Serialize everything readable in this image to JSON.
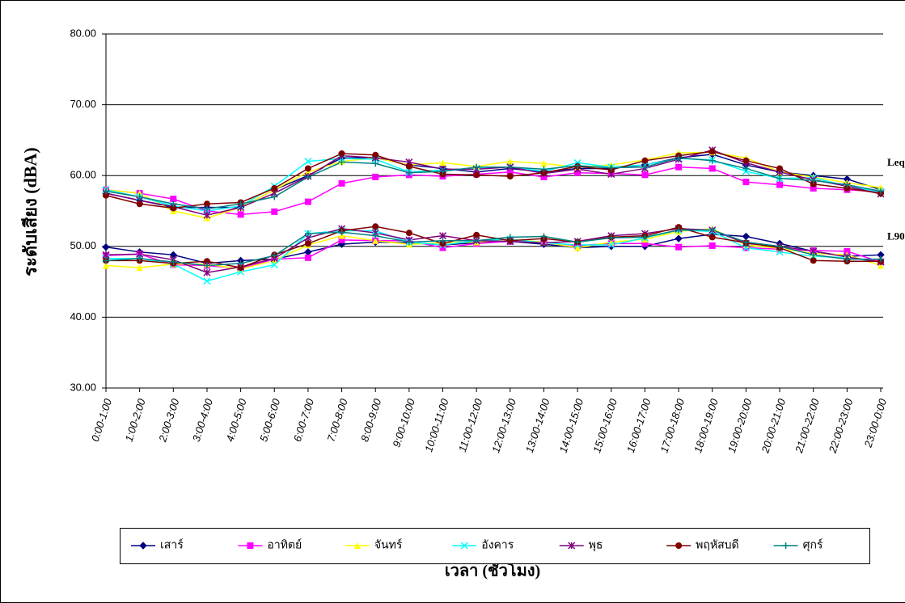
{
  "chart_data": {
    "type": "line",
    "ylabel": "ระดับเสียง (dBA)",
    "xlabel": "เวลา (ชั่วโมง)",
    "annotations": [
      "Leq",
      "L90"
    ],
    "ylim": [
      30,
      80
    ],
    "yticks": [
      {
        "value": 30,
        "label": "30.00"
      },
      {
        "value": 40,
        "label": "40.00"
      },
      {
        "value": 50,
        "label": "50.00"
      },
      {
        "value": 60,
        "label": "60.00"
      },
      {
        "value": 70,
        "label": "70.00"
      },
      {
        "value": 80,
        "label": "80.00"
      }
    ],
    "grid": true,
    "legend": "bottom",
    "categories": [
      "0:00-1:00",
      "1:00-2:00",
      "2:00-3:00",
      "3:00-4:00",
      "4:00-5:00",
      "5:00-6:00",
      "6:00-7:00",
      "7:00-8:00",
      "8:00-9:00",
      "9:00-10:00",
      "10:00-11:00",
      "11:00-12:00",
      "12:00-13:00",
      "13:00-14:00",
      "14:00-15:00",
      "15:00-16:00",
      "16:00-17:00",
      "17:00-18:00",
      "18:00-19:00",
      "19:00-20:00",
      "20:00-21:00",
      "21:00-22:00",
      "22:00-23:00",
      "23:00-0:00"
    ],
    "series": [
      {
        "name": "เสาร์",
        "color": "#000080",
        "marker": "diamond",
        "values": [
          57.5,
          56.5,
          55.5,
          55.5,
          55.5,
          58,
          60,
          62.5,
          62.5,
          61.5,
          61,
          60.5,
          61,
          60.5,
          61,
          61,
          61.5,
          62.5,
          63,
          61.5,
          60.5,
          60,
          59.5,
          58
        ],
        "values_l90": [
          49.9,
          49.2,
          48.8,
          47.6,
          48,
          48.2,
          49.2,
          50.3,
          50.6,
          50.5,
          50.2,
          50.5,
          50.7,
          50.3,
          49.8,
          50,
          50,
          51.1,
          51.7,
          51.4,
          50.4,
          49.3,
          48.6,
          48.8
        ]
      },
      {
        "name": "อาทิตย์",
        "color": "#ff00ff",
        "marker": "square",
        "values": [
          58,
          57.5,
          56.7,
          55,
          54.5,
          54.9,
          56.3,
          58.9,
          59.8,
          60.1,
          59.9,
          60.2,
          60.5,
          59.8,
          60.4,
          60.3,
          60.1,
          61.2,
          61,
          59.1,
          58.7,
          58.2,
          58,
          57.7
        ],
        "values_l90": [
          48.7,
          48.9,
          47.4,
          47.3,
          46.9,
          48.2,
          48.4,
          50.9,
          50.8,
          50.8,
          49.8,
          50.4,
          50.7,
          50.6,
          50.1,
          50.4,
          50.4,
          49.9,
          50.1,
          49.8,
          49.6,
          49.4,
          49.3,
          47.8
        ]
      },
      {
        "name": "จันทร์",
        "color": "#ffff00",
        "marker": "triangle",
        "values": [
          58,
          57.5,
          55,
          54,
          55.5,
          58,
          60.5,
          62,
          62.5,
          61.5,
          61.8,
          61.3,
          62,
          61.7,
          61.2,
          61.5,
          62.2,
          63.2,
          63.3,
          62.5,
          60.5,
          59.8,
          59,
          58.3
        ],
        "values_l90": [
          47.3,
          47,
          47.5,
          47.5,
          46.8,
          48,
          50.2,
          51.5,
          50.8,
          50.3,
          50.5,
          50.6,
          51,
          50.6,
          49.8,
          50.6,
          51,
          52.1,
          52.5,
          50.2,
          49.7,
          49,
          48.8,
          47.3
        ]
      },
      {
        "name": "อังคาร",
        "color": "#00ffff",
        "marker": "x",
        "values": [
          58,
          57,
          55.7,
          55,
          55.7,
          58.5,
          62,
          62.4,
          62.3,
          60.5,
          60.8,
          61,
          61.2,
          60.6,
          61.8,
          61.2,
          61.5,
          62.4,
          62.2,
          60.6,
          59.6,
          59.7,
          58.5,
          57.7
        ],
        "values_l90": [
          48.3,
          48.3,
          47.5,
          45.1,
          46.4,
          47.4,
          51.8,
          52.2,
          52.2,
          50.6,
          50.2,
          50.8,
          51,
          50.5,
          50.2,
          50.2,
          51.2,
          52.3,
          52.1,
          49.8,
          49.2,
          48.6,
          48.4,
          47.8
        ]
      },
      {
        "name": "พุธ",
        "color": "#800080",
        "marker": "asterisk",
        "values": [
          57.5,
          56.5,
          55.6,
          54.4,
          55.5,
          57.5,
          59.9,
          62.8,
          62.5,
          61.9,
          60.9,
          60.9,
          61.2,
          60.3,
          60.9,
          60.2,
          61,
          62.3,
          63.6,
          61.8,
          60.5,
          59.4,
          58.5,
          57.4
        ],
        "values_l90": [
          48.8,
          48.9,
          48.1,
          46.3,
          47.1,
          48.3,
          51.2,
          52.5,
          51.9,
          50.9,
          51.5,
          50.8,
          50.7,
          50.5,
          50.7,
          51.5,
          51.8,
          52.5,
          52.3,
          50.4,
          50,
          49.3,
          48.5,
          47.8
        ]
      },
      {
        "name": "พฤหัสบดี",
        "color": "#800000",
        "marker": "circle",
        "values": [
          57.2,
          56,
          55.4,
          56,
          56.2,
          58.2,
          61,
          63.1,
          62.9,
          61.3,
          60.2,
          60.1,
          59.9,
          60.4,
          61.3,
          60.8,
          62.1,
          62.8,
          63.4,
          62.1,
          61,
          58.8,
          58.2,
          57.5
        ],
        "values_l90": [
          48,
          48,
          47.6,
          47.9,
          47,
          48.8,
          50.4,
          52.2,
          52.8,
          51.9,
          50.4,
          51.6,
          50.8,
          51.1,
          50.6,
          51.3,
          51.5,
          52.7,
          51.3,
          50.5,
          49.8,
          48,
          47.9,
          47.9
        ]
      },
      {
        "name": "ศุกร์",
        "color": "#008080",
        "marker": "plus",
        "values": [
          57.8,
          57,
          56,
          55.3,
          56,
          57,
          59.8,
          61.9,
          61.7,
          60.4,
          60.6,
          61.2,
          61.2,
          60.9,
          61.4,
          61.1,
          61.2,
          62.5,
          62.1,
          61,
          59.6,
          59.3,
          58.7,
          57.8
        ],
        "values_l90": [
          48,
          48.3,
          47.8,
          47.3,
          47.6,
          48.7,
          51.8,
          52,
          51.5,
          50.6,
          50.8,
          50.8,
          51.3,
          51.4,
          50.6,
          51.2,
          51.3,
          52.3,
          52.3,
          50.6,
          50,
          48.8,
          48.2,
          48.2
        ]
      }
    ]
  }
}
